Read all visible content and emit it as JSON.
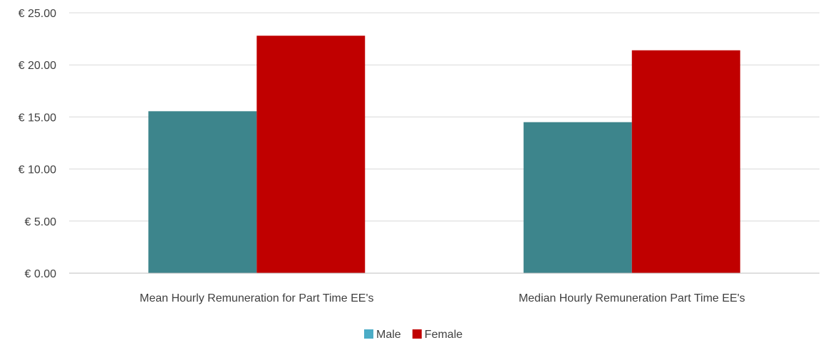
{
  "chart_data": {
    "type": "bar",
    "title": "",
    "xlabel": "",
    "ylabel": "",
    "categories": [
      "Mean Hourly Remuneration for Part Time EE's",
      "Median Hourly Remuneration Part Time EE's"
    ],
    "series": [
      {
        "name": "Male",
        "color": "#3D858C",
        "values": [
          15.55,
          14.5
        ]
      },
      {
        "name": "Female",
        "color": "#C00000",
        "values": [
          22.8,
          21.4
        ]
      }
    ],
    "ylim": [
      0,
      25
    ],
    "yticks": [
      0,
      5,
      10,
      15,
      20,
      25
    ],
    "ytick_labels": [
      "€ 0.00",
      "€ 5.00",
      "€ 10.00",
      "€ 15.00",
      "€ 20.00",
      "€ 25.00"
    ],
    "grid": true,
    "legend_position": "bottom",
    "legend_colors": {
      "Male": "#4BACC6",
      "Female": "#C00000"
    }
  }
}
